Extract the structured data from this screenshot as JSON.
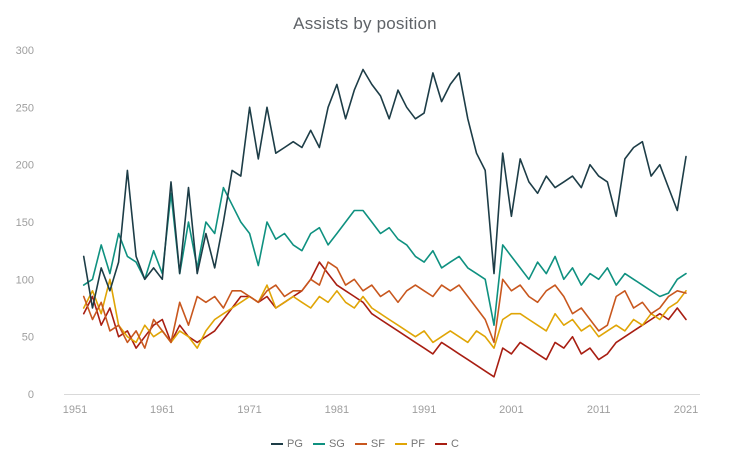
{
  "chart_data": {
    "type": "line",
    "title": "Assists by position",
    "xlabel": "",
    "ylabel": "",
    "xlim": [
      1951,
      2021
    ],
    "ylim": [
      0,
      300
    ],
    "grid": false,
    "legend_position": "bottom",
    "x_tick_labels": [
      "1951",
      "1961",
      "1971",
      "1981",
      "1991",
      "2001",
      "2011",
      "2021"
    ],
    "y_ticks": [
      0,
      50,
      100,
      150,
      200,
      250,
      300
    ],
    "x": [
      1952,
      1953,
      1954,
      1955,
      1956,
      1957,
      1958,
      1959,
      1960,
      1961,
      1962,
      1963,
      1964,
      1965,
      1966,
      1967,
      1968,
      1969,
      1970,
      1971,
      1972,
      1973,
      1974,
      1975,
      1976,
      1977,
      1978,
      1979,
      1980,
      1981,
      1982,
      1983,
      1984,
      1985,
      1986,
      1987,
      1988,
      1989,
      1990,
      1991,
      1992,
      1993,
      1994,
      1995,
      1996,
      1997,
      1998,
      1999,
      2000,
      2001,
      2002,
      2003,
      2004,
      2005,
      2006,
      2007,
      2008,
      2009,
      2010,
      2011,
      2012,
      2013,
      2014,
      2015,
      2016,
      2017,
      2018,
      2019,
      2020,
      2021
    ],
    "series": [
      {
        "name": "PG",
        "color": "#1d3d47",
        "values": [
          120,
          75,
          110,
          90,
          115,
          195,
          120,
          100,
          110,
          100,
          185,
          105,
          180,
          105,
          140,
          110,
          150,
          195,
          190,
          250,
          205,
          250,
          210,
          215,
          220,
          215,
          230,
          215,
          250,
          270,
          240,
          265,
          283,
          270,
          260,
          240,
          265,
          250,
          240,
          245,
          280,
          255,
          270,
          280,
          240,
          210,
          195,
          105,
          210,
          155,
          205,
          185,
          175,
          190,
          180,
          185,
          190,
          180,
          200,
          190,
          185,
          155,
          205,
          215,
          220,
          190,
          200,
          180,
          160,
          207
        ]
      },
      {
        "name": "SG",
        "color": "#0f9180",
        "values": [
          95,
          100,
          130,
          105,
          140,
          120,
          115,
          100,
          125,
          105,
          175,
          105,
          150,
          110,
          150,
          140,
          180,
          165,
          150,
          140,
          112,
          150,
          135,
          140,
          130,
          125,
          140,
          145,
          130,
          140,
          150,
          160,
          160,
          150,
          140,
          145,
          135,
          130,
          120,
          115,
          125,
          110,
          115,
          120,
          110,
          105,
          100,
          60,
          130,
          120,
          110,
          100,
          115,
          105,
          120,
          100,
          110,
          95,
          105,
          100,
          110,
          95,
          105,
          100,
          95,
          90,
          85,
          88,
          100,
          105
        ]
      },
      {
        "name": "SF",
        "color": "#c8571e",
        "values": [
          85,
          65,
          80,
          55,
          60,
          45,
          55,
          40,
          65,
          55,
          45,
          80,
          60,
          85,
          80,
          85,
          75,
          90,
          90,
          85,
          80,
          90,
          95,
          85,
          90,
          90,
          100,
          95,
          115,
          110,
          95,
          100,
          90,
          95,
          85,
          90,
          80,
          90,
          95,
          90,
          85,
          95,
          90,
          95,
          85,
          75,
          65,
          45,
          100,
          90,
          95,
          85,
          80,
          90,
          95,
          85,
          70,
          75,
          65,
          55,
          60,
          85,
          90,
          75,
          80,
          70,
          75,
          85,
          90,
          88
        ]
      },
      {
        "name": "PF",
        "color": "#e0a506",
        "values": [
          75,
          90,
          70,
          100,
          60,
          50,
          45,
          60,
          50,
          55,
          45,
          55,
          50,
          40,
          55,
          65,
          70,
          75,
          80,
          85,
          80,
          95,
          75,
          80,
          85,
          80,
          75,
          85,
          80,
          90,
          80,
          75,
          85,
          75,
          70,
          65,
          60,
          55,
          50,
          55,
          45,
          50,
          55,
          50,
          45,
          55,
          50,
          40,
          65,
          70,
          70,
          65,
          60,
          55,
          70,
          60,
          65,
          55,
          60,
          50,
          55,
          60,
          55,
          65,
          60,
          70,
          65,
          75,
          80,
          90
        ]
      },
      {
        "name": "C",
        "color": "#a81e12",
        "values": [
          70,
          85,
          60,
          75,
          50,
          55,
          40,
          50,
          60,
          65,
          45,
          60,
          50,
          45,
          50,
          55,
          65,
          75,
          85,
          85,
          80,
          85,
          75,
          80,
          85,
          90,
          100,
          115,
          105,
          95,
          90,
          85,
          80,
          70,
          65,
          60,
          55,
          50,
          45,
          40,
          35,
          45,
          40,
          35,
          30,
          25,
          20,
          15,
          40,
          35,
          45,
          40,
          35,
          30,
          45,
          40,
          50,
          35,
          40,
          30,
          35,
          45,
          50,
          55,
          60,
          65,
          70,
          65,
          75,
          65
        ]
      }
    ]
  }
}
